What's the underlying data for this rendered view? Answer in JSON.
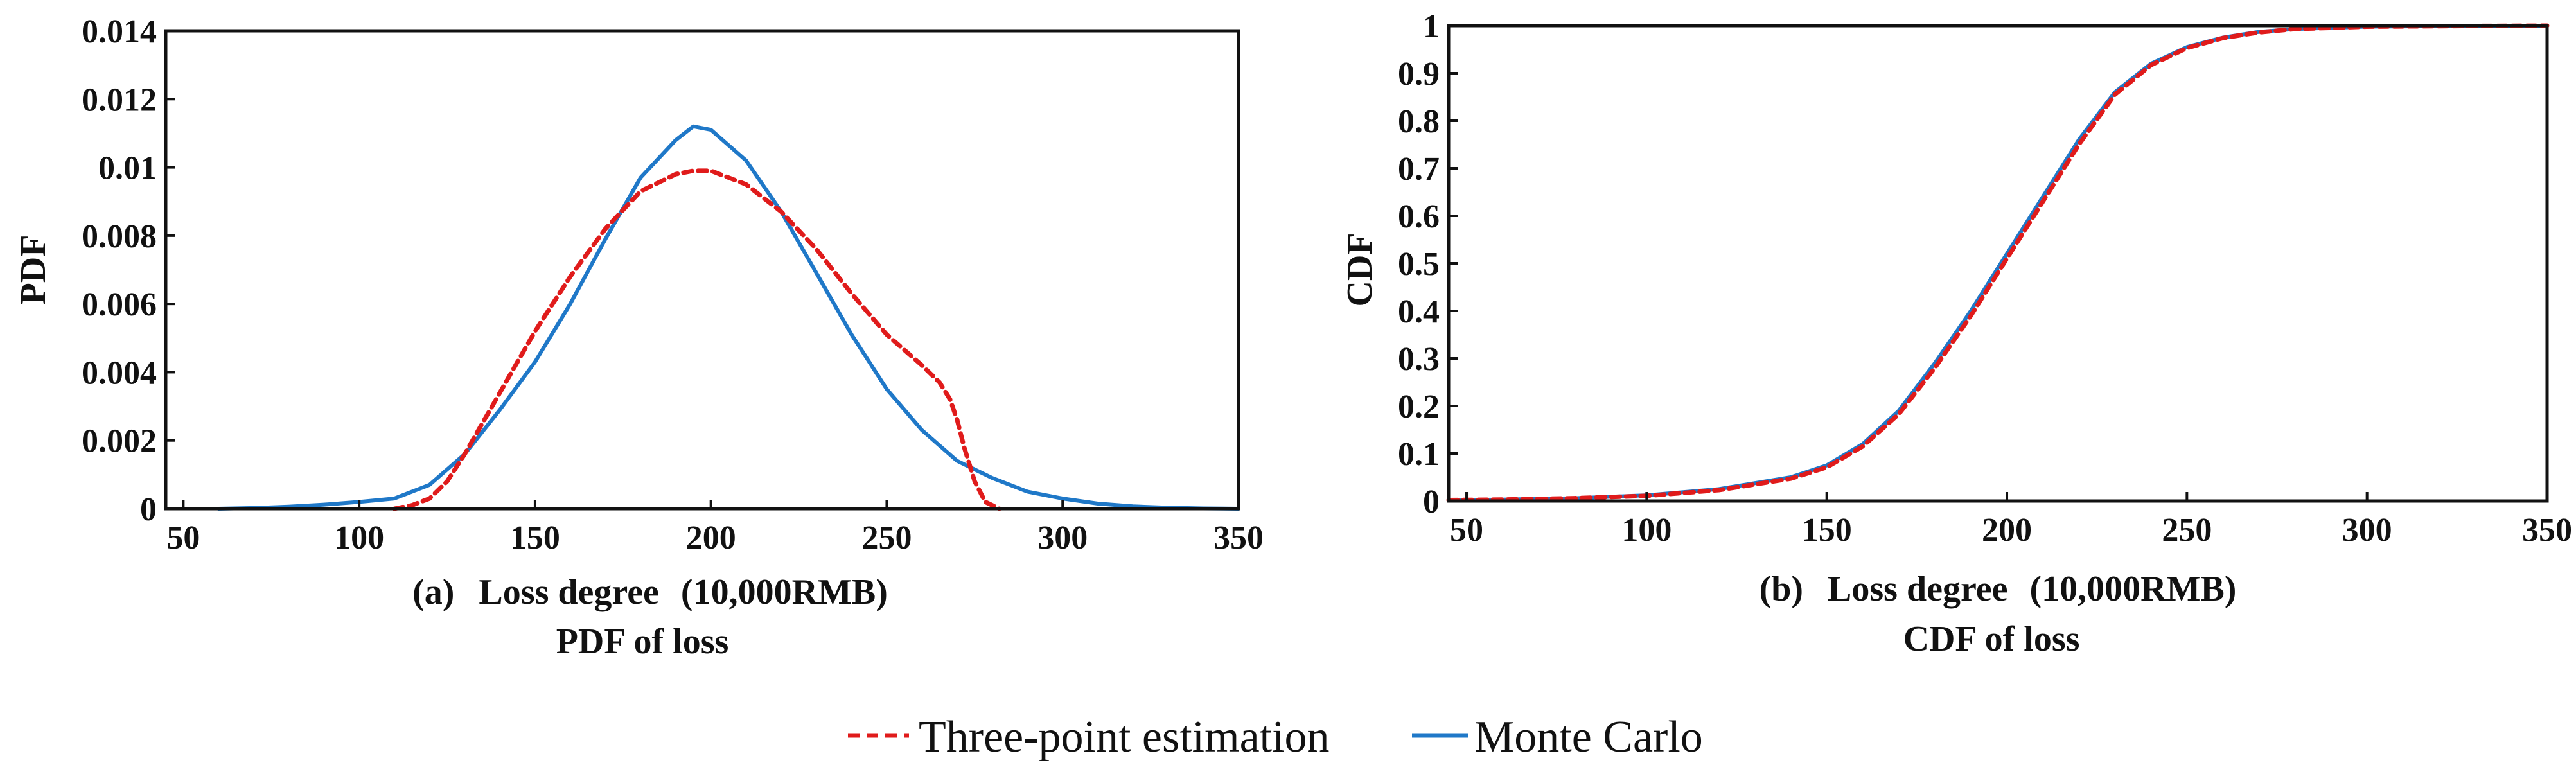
{
  "legend": {
    "entries": [
      {
        "label": "Three-point estimation",
        "color": "#e01b1b",
        "dash": "dashed"
      },
      {
        "label": "Monte Carlo",
        "color": "#1f78c8",
        "dash": "solid"
      }
    ]
  },
  "chart_data": [
    {
      "type": "line",
      "panel_label": "(a)",
      "xlabel": "Loss degree",
      "xlabel_unit": "(10,000RMB)",
      "caption": "PDF  of  loss",
      "ylabel": "PDF",
      "xlim": [
        45,
        350
      ],
      "ylim": [
        0,
        0.014
      ],
      "xticks": [
        50,
        100,
        150,
        200,
        250,
        300,
        350
      ],
      "yticks": [
        0,
        0.002,
        0.004,
        0.006,
        0.008,
        0.01,
        0.012,
        0.014
      ],
      "ytick_labels": [
        "0",
        "0.002",
        "0.004",
        "0.006",
        "0.008",
        "0.01",
        "0.012",
        "0.014"
      ],
      "series": [
        {
          "name": "Monte Carlo",
          "color": "#1f78c8",
          "x": [
            60,
            70,
            80,
            90,
            100,
            110,
            120,
            130,
            140,
            150,
            160,
            170,
            180,
            190,
            195,
            200,
            210,
            220,
            230,
            240,
            250,
            260,
            270,
            280,
            290,
            300,
            310,
            320,
            330,
            340,
            350
          ],
          "y": [
            0,
            2e-05,
            6e-05,
            0.00012,
            0.0002,
            0.0003,
            0.0007,
            0.0016,
            0.0029,
            0.0043,
            0.006,
            0.0079,
            0.0097,
            0.0108,
            0.0112,
            0.0111,
            0.0102,
            0.0087,
            0.0069,
            0.0051,
            0.0035,
            0.0023,
            0.0014,
            0.0009,
            0.0005,
            0.0003,
            0.00015,
            7e-05,
            3e-05,
            1e-05,
            0
          ]
        },
        {
          "name": "Three-point estimation",
          "color": "#e01b1b",
          "x": [
            110,
            115,
            120,
            125,
            130,
            140,
            150,
            160,
            170,
            180,
            190,
            195,
            200,
            210,
            220,
            230,
            240,
            250,
            260,
            265,
            268,
            270,
            272,
            275,
            278,
            282
          ],
          "y": [
            0,
            0.0001,
            0.0003,
            0.0008,
            0.0016,
            0.0034,
            0.0052,
            0.0068,
            0.0082,
            0.0093,
            0.0098,
            0.0099,
            0.0099,
            0.0095,
            0.0087,
            0.0076,
            0.0063,
            0.0051,
            0.0042,
            0.0037,
            0.0032,
            0.0026,
            0.0018,
            0.0008,
            0.0002,
            0
          ]
        }
      ]
    },
    {
      "type": "line",
      "panel_label": "(b)",
      "xlabel": "Loss degree",
      "xlabel_unit": "(10,000RMB)",
      "caption": "CDF of  loss",
      "ylabel": "CDF",
      "xlim": [
        45,
        350
      ],
      "ylim": [
        0,
        1
      ],
      "xticks": [
        50,
        100,
        150,
        200,
        250,
        300,
        350
      ],
      "yticks": [
        0,
        0.1,
        0.2,
        0.3,
        0.4,
        0.5,
        0.6,
        0.7,
        0.8,
        0.9,
        1
      ],
      "ytick_labels": [
        "0",
        "0.1",
        "0.2",
        "0.3",
        "0.4",
        "0.5",
        "0.6",
        "0.7",
        "0.8",
        "0.9",
        "1"
      ],
      "series": [
        {
          "name": "Monte Carlo",
          "color": "#1f78c8",
          "x": [
            45,
            60,
            80,
            100,
            120,
            140,
            150,
            160,
            170,
            180,
            190,
            200,
            210,
            220,
            230,
            240,
            250,
            260,
            270,
            280,
            300,
            320,
            350
          ],
          "y": [
            0.002,
            0.003,
            0.006,
            0.012,
            0.025,
            0.05,
            0.075,
            0.12,
            0.19,
            0.29,
            0.4,
            0.52,
            0.64,
            0.76,
            0.86,
            0.92,
            0.955,
            0.975,
            0.987,
            0.993,
            0.998,
            0.999,
            1.0
          ]
        },
        {
          "name": "Three-point estimation",
          "color": "#e01b1b",
          "x": [
            45,
            60,
            80,
            100,
            120,
            140,
            150,
            160,
            170,
            180,
            190,
            200,
            210,
            220,
            230,
            240,
            250,
            260,
            270,
            280,
            300,
            320,
            350
          ],
          "y": [
            0.002,
            0.003,
            0.006,
            0.011,
            0.023,
            0.047,
            0.071,
            0.115,
            0.183,
            0.28,
            0.39,
            0.51,
            0.63,
            0.75,
            0.855,
            0.917,
            0.953,
            0.974,
            0.986,
            0.993,
            0.998,
            0.999,
            1.0
          ]
        }
      ]
    }
  ]
}
